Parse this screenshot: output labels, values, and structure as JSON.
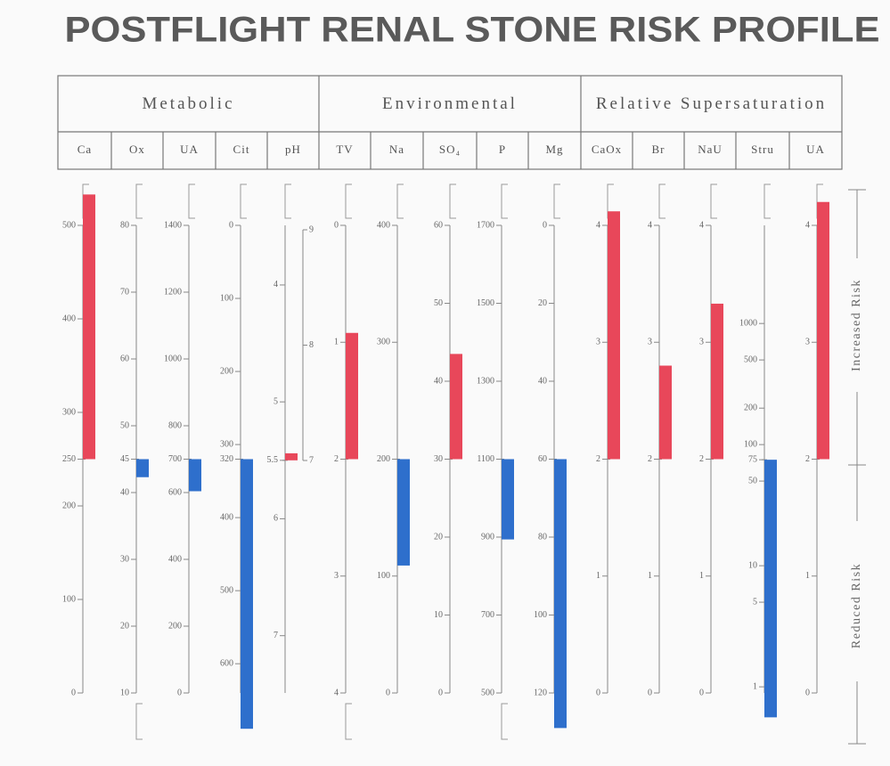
{
  "chart_data": {
    "type": "risk-profile",
    "title": "POSTFLIGHT RENAL STONE RISK PROFILE",
    "risk_labels": [
      "Increased Risk",
      "Reduced Risk"
    ],
    "groups": [
      {
        "name": "Metabolic",
        "columns": [
          {
            "name": "Ca",
            "ylim": [
              0,
              500
            ],
            "yticks": [
              0,
              100,
              200,
              250,
              300,
              400,
              500
            ],
            "base": 250,
            "value": 533,
            "color": "#e8475a"
          },
          {
            "name": "Ox",
            "ylim": [
              10,
              80
            ],
            "yticks": [
              10,
              20,
              30,
              40,
              45,
              50,
              60,
              70,
              80
            ],
            "base": 45,
            "value": 42.3,
            "color": "#2e6fcc"
          },
          {
            "name": "UA",
            "ylim": [
              0,
              1400
            ],
            "yticks": [
              0,
              200,
              400,
              600,
              700,
              800,
              1000,
              1200,
              1400
            ],
            "base": 700,
            "value": 604,
            "color": "#2e6fcc"
          },
          {
            "name": "Cit",
            "ylim": [
              640,
              0
            ],
            "yticks": [
              0,
              100,
              200,
              300,
              320,
              400,
              500,
              600
            ],
            "base": 320,
            "value": 689,
            "color": "#2e6fcc"
          },
          {
            "name": "pH",
            "ylim": [
              7.49,
              3.49
            ],
            "yticks": [
              4,
              5,
              5.5,
              6,
              7
            ],
            "y2lim": [
              7,
              9
            ],
            "y2ticks": [
              7,
              8,
              9
            ],
            "base": 5.5,
            "value": 5.44,
            "color": "#e8475a"
          }
        ]
      },
      {
        "name": "Environmental",
        "columns": [
          {
            "name": "TV",
            "ylim": [
              4,
              0
            ],
            "yticks": [
              0,
              1,
              2,
              3,
              4
            ],
            "base": 2,
            "value": 0.92,
            "color": "#e8475a"
          },
          {
            "name": "Na",
            "ylim": [
              0,
              400
            ],
            "yticks": [
              0,
              100,
              200,
              300,
              400
            ],
            "base": 200,
            "value": 109,
            "color": "#2e6fcc"
          },
          {
            "name": "SO₄",
            "ylim": [
              0,
              60
            ],
            "yticks": [
              0,
              10,
              20,
              30,
              40,
              50,
              60
            ],
            "base": 30,
            "value": 43.5,
            "color": "#e8475a"
          },
          {
            "name": "P",
            "ylim": [
              500,
              1700
            ],
            "yticks": [
              500,
              700,
              900,
              1100,
              1300,
              1500,
              1700
            ],
            "base": 1100,
            "value": 894,
            "color": "#2e6fcc"
          },
          {
            "name": "Mg",
            "ylim": [
              120,
              0
            ],
            "yticks": [
              0,
              20,
              40,
              60,
              80,
              100,
              120
            ],
            "base": 60,
            "value": 129,
            "color": "#2e6fcc"
          }
        ]
      },
      {
        "name": "Relative Supersaturation",
        "columns": [
          {
            "name": "CaOx",
            "ylim": [
              0,
              4
            ],
            "yticks": [
              0,
              1,
              2,
              3,
              4
            ],
            "base": 2,
            "value": 4.12,
            "color": "#e8475a"
          },
          {
            "name": "Br",
            "ylim": [
              0,
              4
            ],
            "yticks": [
              0,
              1,
              2,
              3,
              4
            ],
            "base": 2,
            "value": 2.8,
            "color": "#e8475a"
          },
          {
            "name": "NaU",
            "ylim": [
              0,
              4
            ],
            "yticks": [
              0,
              1,
              2,
              3,
              4
            ],
            "base": 2,
            "value": 3.33,
            "color": "#e8475a"
          },
          {
            "name": "Stru",
            "log": true,
            "ylim": [
              0.89,
              6460
            ],
            "yticks": [
              1,
              5,
              10,
              50,
              75,
              100,
              200,
              500,
              1000
            ],
            "base": 75,
            "value": 0.56,
            "color": "#2e6fcc"
          },
          {
            "name": "UA",
            "ylim": [
              0,
              4
            ],
            "yticks": [
              0,
              1,
              2,
              3,
              4
            ],
            "base": 2,
            "value": 4.2,
            "color": "#e8475a"
          }
        ]
      }
    ]
  }
}
